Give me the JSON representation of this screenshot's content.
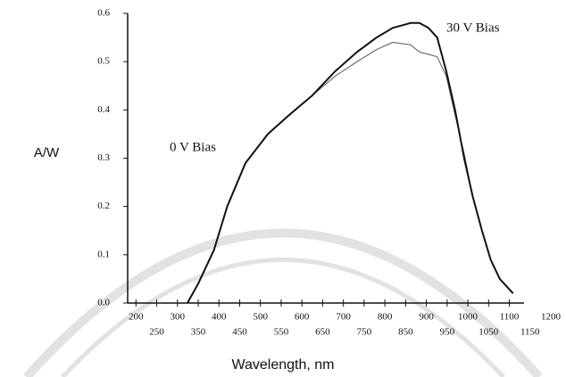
{
  "chart_data": {
    "type": "line",
    "y_label": "A/W",
    "x_label": "Wavelength, nm",
    "x": [
      324,
      350,
      388,
      420,
      464,
      518,
      570,
      625,
      680,
      733,
      780,
      819,
      862,
      883,
      905,
      926,
      948,
      969,
      991,
      1012,
      1034,
      1055,
      1077,
      1109
    ],
    "series": [
      {
        "name": "0 V Bias",
        "color": "#555555",
        "values": [
          0,
          0.04,
          0.11,
          0.2,
          0.29,
          0.35,
          0.39,
          0.43,
          0.47,
          0.5,
          0.525,
          0.54,
          0.535,
          0.52,
          0.515,
          0.51,
          0.47,
          0.39,
          0.31,
          0.22,
          0.15,
          0.09,
          0.05,
          0.02
        ]
      },
      {
        "name": "30 V Bias",
        "color": "#111111",
        "values": [
          0,
          0.04,
          0.11,
          0.2,
          0.29,
          0.35,
          0.39,
          0.43,
          0.48,
          0.52,
          0.55,
          0.57,
          0.58,
          0.58,
          0.57,
          0.55,
          0.48,
          0.4,
          0.3,
          0.22,
          0.15,
          0.09,
          0.05,
          0.02
        ]
      }
    ],
    "xlim": [
      180,
      1200
    ],
    "xticks": [
      200,
      250,
      300,
      350,
      400,
      450,
      500,
      550,
      600,
      650,
      700,
      750,
      800,
      850,
      900,
      950,
      1000,
      1050,
      1100,
      1150,
      1200
    ],
    "ylim": [
      0,
      0.6
    ],
    "yticks": [
      {
        "value": 0,
        "label": "0.0"
      },
      0.1,
      0.2,
      0.3,
      0.4,
      0.5,
      0.6
    ]
  }
}
